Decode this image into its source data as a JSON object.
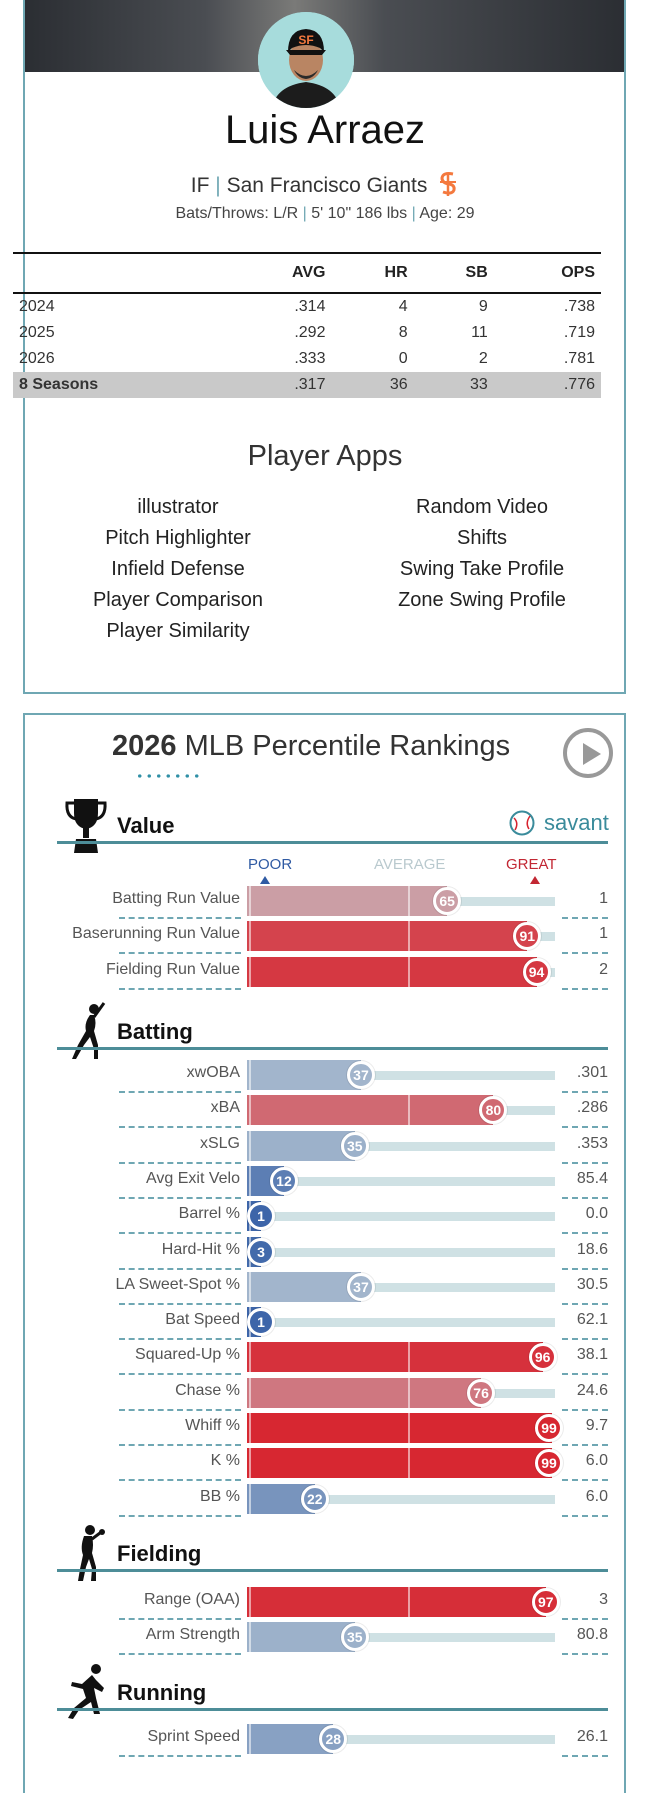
{
  "player": {
    "name": "Luis Arraez",
    "position": "IF",
    "team": "San Francisco Giants",
    "bats_throws": "Bats/Throws: L/R",
    "height_weight": "5' 10\" 186 lbs",
    "age": "Age: 29"
  },
  "stats_table": {
    "columns": [
      "",
      "AVG",
      "HR",
      "SB",
      "OPS"
    ],
    "rows": [
      [
        "2024",
        ".314",
        "4",
        "9",
        ".738"
      ],
      [
        "2025",
        ".292",
        "8",
        "11",
        ".719"
      ],
      [
        "2026",
        ".333",
        "0",
        "2",
        ".781"
      ]
    ],
    "total": [
      "8 Seasons",
      ".317",
      "36",
      "33",
      ".776"
    ]
  },
  "player_apps": {
    "title": "Player Apps",
    "left": [
      "illustrator",
      "Pitch Highlighter",
      "Infield Defense",
      "Player Comparison",
      "Player Similarity"
    ],
    "right": [
      "Random Video",
      "Shifts",
      "Swing Take Profile",
      "Zone Swing Profile"
    ]
  },
  "rankings": {
    "year": "2026",
    "title": "MLB Percentile Rankings",
    "brand": "savant",
    "legend": {
      "poor": "POOR",
      "average": "AVERAGE",
      "great": "GREAT"
    },
    "colors": {
      "poor": "#3a63a8",
      "great": "#d7232e",
      "accent": "#4d8d98"
    },
    "sections": [
      {
        "title": "Value",
        "icon": "trophy-icon",
        "metrics": [
          {
            "label": "Batting Run Value",
            "percentile": 65,
            "value": "1"
          },
          {
            "label": "Baserunning Run Value",
            "percentile": 91,
            "value": "1"
          },
          {
            "label": "Fielding Run Value",
            "percentile": 94,
            "value": "2"
          }
        ]
      },
      {
        "title": "Batting",
        "icon": "batter-icon",
        "metrics": [
          {
            "label": "xwOBA",
            "percentile": 37,
            "value": ".301"
          },
          {
            "label": "xBA",
            "percentile": 80,
            "value": ".286"
          },
          {
            "label": "xSLG",
            "percentile": 35,
            "value": ".353"
          },
          {
            "label": "Avg Exit Velo",
            "percentile": 12,
            "value": "85.4"
          },
          {
            "label": "Barrel %",
            "percentile": 1,
            "value": "0.0"
          },
          {
            "label": "Hard-Hit %",
            "percentile": 3,
            "value": "18.6"
          },
          {
            "label": "LA Sweet-Spot %",
            "percentile": 37,
            "value": "30.5"
          },
          {
            "label": "Bat Speed",
            "percentile": 1,
            "value": "62.1"
          },
          {
            "label": "Squared-Up %",
            "percentile": 96,
            "value": "38.1"
          },
          {
            "label": "Chase %",
            "percentile": 76,
            "value": "24.6"
          },
          {
            "label": "Whiff %",
            "percentile": 99,
            "value": "9.7"
          },
          {
            "label": "K %",
            "percentile": 99,
            "value": "6.0"
          },
          {
            "label": "BB %",
            "percentile": 22,
            "value": "6.0"
          }
        ]
      },
      {
        "title": "Fielding",
        "icon": "fielder-icon",
        "metrics": [
          {
            "label": "Range (OAA)",
            "percentile": 97,
            "value": "3"
          },
          {
            "label": "Arm Strength",
            "percentile": 35,
            "value": "80.8"
          }
        ]
      },
      {
        "title": "Running",
        "icon": "runner-icon",
        "metrics": [
          {
            "label": "Sprint Speed",
            "percentile": 28,
            "value": "26.1"
          }
        ]
      }
    ]
  }
}
